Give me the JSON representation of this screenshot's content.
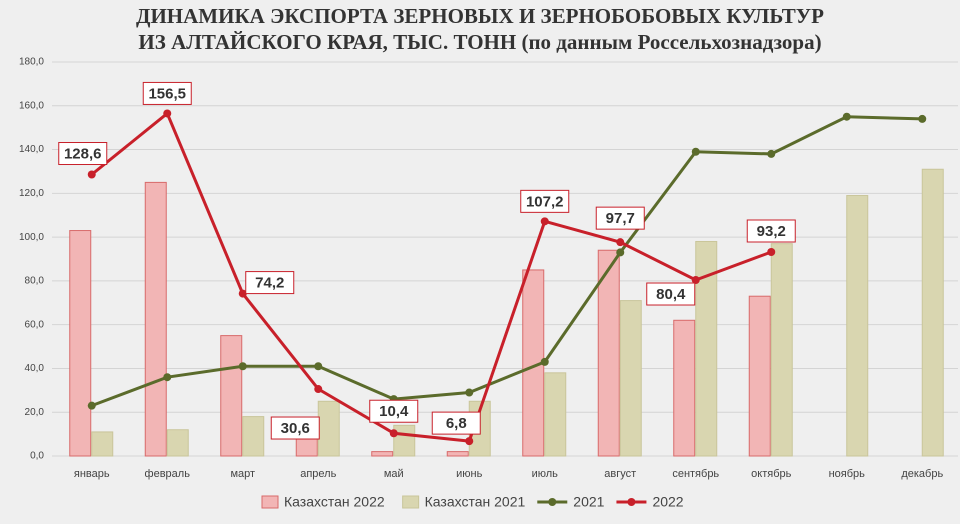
{
  "chart_data": {
    "type": "bar_line",
    "title": "ДИНАМИКА ЭКСПОРТА  ЗЕРНОВЫХ И ЗЕРНОБОБОВЫХ КУЛЬТУР",
    "subtitle": "ИЗ АЛТАЙСКОГО КРАЯ, ТЫС. ТОНН (по данным Россельхознадзора)",
    "categories": [
      "январь",
      "февраль",
      "март",
      "апрель",
      "май",
      "июнь",
      "июль",
      "август",
      "сентябрь",
      "октябрь",
      "ноябрь",
      "декабрь"
    ],
    "series": [
      {
        "name": "Казахстан 2022",
        "type": "bar",
        "color": "#f2b5b5",
        "values": [
          103,
          125,
          55,
          10,
          2,
          2,
          85,
          94,
          62,
          73,
          null,
          null
        ]
      },
      {
        "name": "Казахстан 2021",
        "type": "bar",
        "color": "#d9d6b0",
        "values": [
          11,
          12,
          18,
          25,
          14,
          25,
          38,
          71,
          98,
          97,
          119,
          131
        ]
      },
      {
        "name": "2021",
        "type": "line",
        "color": "#5b6b2b",
        "values": [
          23,
          36,
          41,
          41,
          26,
          29,
          43,
          93,
          139,
          138,
          155,
          154
        ]
      },
      {
        "name": "2022",
        "type": "line",
        "color": "#c8202a",
        "values": [
          128.6,
          156.5,
          74.2,
          30.6,
          10.4,
          6.8,
          107.2,
          97.7,
          80.4,
          93.2,
          null,
          null
        ],
        "value_labels": [
          "128,6",
          "156,5",
          "74,2",
          "30,6",
          "10,4",
          "6,8",
          "107,2",
          "97,7",
          "80,4",
          "93,2",
          null,
          null
        ]
      }
    ],
    "ylim": [
      0,
      180
    ],
    "yticks": [
      {
        "value": 0,
        "label": "0,0"
      },
      {
        "value": 20,
        "label": "20,0"
      },
      {
        "value": 40,
        "label": "40,0"
      },
      {
        "value": 60,
        "label": "60,0"
      },
      {
        "value": 80,
        "label": "80,0"
      },
      {
        "value": 100,
        "label": "100,0"
      },
      {
        "value": 120,
        "label": "120,0"
      },
      {
        "value": 140,
        "label": "140,0"
      },
      {
        "value": 160,
        "label": "160,0"
      },
      {
        "value": 180,
        "label": "180,0"
      }
    ],
    "grid": true,
    "legend": "bottom"
  }
}
